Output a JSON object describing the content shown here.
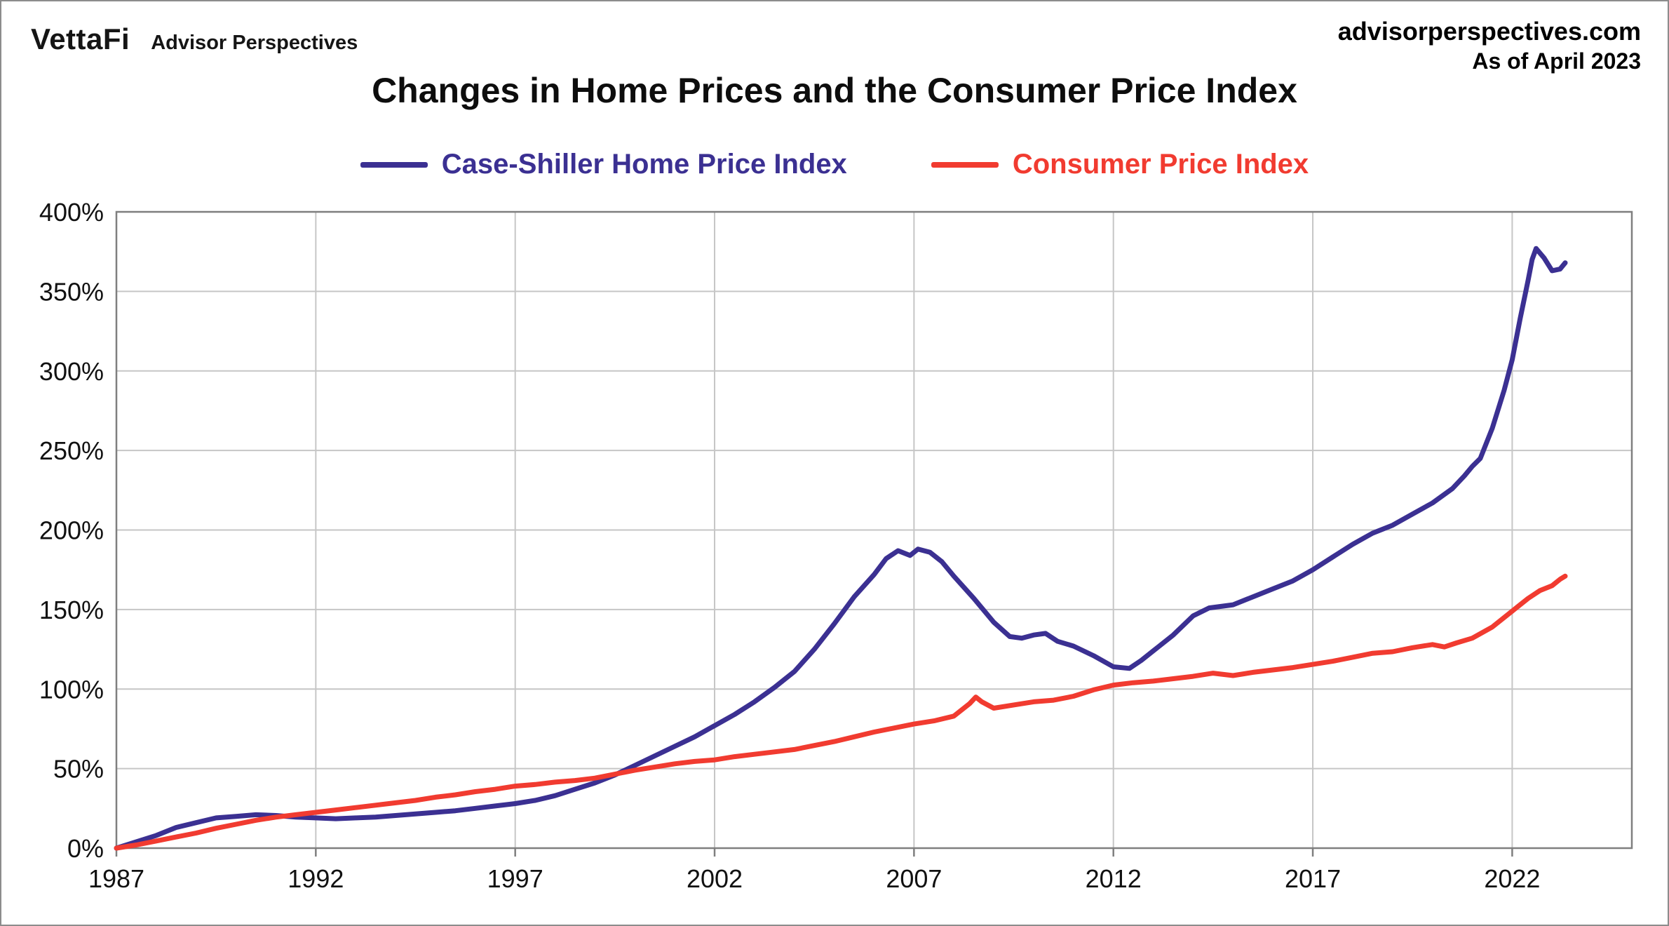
{
  "header": {
    "logo": "VettaFi",
    "logo_sub": "Advisor Perspectives",
    "site": "advisorperspectives.com",
    "as_of": "As of April 2023",
    "title": "Changes in Home Prices and the Consumer Price Index"
  },
  "legend": [
    {
      "label": "Case-Shiller Home Price Index",
      "color": "#3b3092"
    },
    {
      "label": "Consumer Price Index",
      "color": "#f13b30"
    }
  ],
  "chart_data": {
    "type": "line",
    "title": "Changes in Home Prices and the Consumer Price Index",
    "xlabel": "",
    "ylabel": "",
    "x_domain": [
      1987,
      2025
    ],
    "y_domain": [
      0,
      400
    ],
    "x_ticks": [
      1987,
      1992,
      1997,
      2002,
      2007,
      2012,
      2017,
      2022
    ],
    "y_ticks": [
      0,
      50,
      100,
      150,
      200,
      250,
      300,
      350,
      400
    ],
    "y_suffix": "%",
    "grid": true,
    "grid_color": "#c6c6c6",
    "axis_color": "#7f7f7f",
    "legend_position": "top-center",
    "series": [
      {
        "name": "Case-Shiller Home Price Index",
        "color": "#3b3092",
        "points": [
          [
            1987,
            0
          ],
          [
            1987.5,
            4
          ],
          [
            1988,
            8
          ],
          [
            1988.5,
            13
          ],
          [
            1989,
            16
          ],
          [
            1989.5,
            19
          ],
          [
            1990,
            20
          ],
          [
            1990.5,
            21
          ],
          [
            1991,
            20.5
          ],
          [
            1991.5,
            19.5
          ],
          [
            1992,
            19
          ],
          [
            1992.5,
            18.5
          ],
          [
            1993,
            19
          ],
          [
            1993.5,
            19.5
          ],
          [
            1994,
            20.5
          ],
          [
            1994.5,
            21.5
          ],
          [
            1995,
            22.5
          ],
          [
            1995.5,
            23.5
          ],
          [
            1996,
            25
          ],
          [
            1996.5,
            26.5
          ],
          [
            1997,
            28
          ],
          [
            1997.5,
            30
          ],
          [
            1998,
            33
          ],
          [
            1998.5,
            37
          ],
          [
            1999,
            41
          ],
          [
            1999.5,
            46
          ],
          [
            2000,
            52
          ],
          [
            2000.5,
            58
          ],
          [
            2001,
            64
          ],
          [
            2001.5,
            70
          ],
          [
            2002,
            77
          ],
          [
            2002.5,
            84
          ],
          [
            2003,
            92
          ],
          [
            2003.5,
            101
          ],
          [
            2004,
            111
          ],
          [
            2004.5,
            125
          ],
          [
            2005,
            141
          ],
          [
            2005.5,
            158
          ],
          [
            2006,
            172
          ],
          [
            2006.3,
            182
          ],
          [
            2006.6,
            187
          ],
          [
            2006.9,
            184
          ],
          [
            2007.1,
            188
          ],
          [
            2007.4,
            186
          ],
          [
            2007.7,
            180
          ],
          [
            2008,
            171
          ],
          [
            2008.5,
            157
          ],
          [
            2009,
            142
          ],
          [
            2009.4,
            133
          ],
          [
            2009.7,
            132
          ],
          [
            2010,
            134
          ],
          [
            2010.3,
            135
          ],
          [
            2010.6,
            130
          ],
          [
            2011,
            127
          ],
          [
            2011.5,
            121
          ],
          [
            2012,
            114
          ],
          [
            2012.4,
            113
          ],
          [
            2012.7,
            118
          ],
          [
            2013,
            124
          ],
          [
            2013.5,
            134
          ],
          [
            2014,
            146
          ],
          [
            2014.4,
            151
          ],
          [
            2015,
            153
          ],
          [
            2015.5,
            158
          ],
          [
            2016,
            163
          ],
          [
            2016.5,
            168
          ],
          [
            2017,
            175
          ],
          [
            2017.5,
            183
          ],
          [
            2018,
            191
          ],
          [
            2018.5,
            198
          ],
          [
            2019,
            203
          ],
          [
            2019.5,
            210
          ],
          [
            2020,
            217
          ],
          [
            2020.5,
            226
          ],
          [
            2020.8,
            234
          ],
          [
            2021,
            240
          ],
          [
            2021.2,
            245
          ],
          [
            2021.5,
            264
          ],
          [
            2021.8,
            288
          ],
          [
            2022,
            307
          ],
          [
            2022.2,
            333
          ],
          [
            2022.4,
            357
          ],
          [
            2022.5,
            370
          ],
          [
            2022.6,
            377
          ],
          [
            2022.8,
            371
          ],
          [
            2023,
            363
          ],
          [
            2023.2,
            364
          ],
          [
            2023.33,
            368
          ]
        ]
      },
      {
        "name": "Consumer Price Index",
        "color": "#f13b30",
        "points": [
          [
            1987,
            0
          ],
          [
            1987.5,
            2
          ],
          [
            1988,
            4.5
          ],
          [
            1988.5,
            7
          ],
          [
            1989,
            9.5
          ],
          [
            1989.5,
            12.5
          ],
          [
            1990,
            15
          ],
          [
            1990.5,
            17.5
          ],
          [
            1991,
            19.5
          ],
          [
            1991.5,
            21
          ],
          [
            1992,
            22.5
          ],
          [
            1992.5,
            24
          ],
          [
            1993,
            25.5
          ],
          [
            1993.5,
            27
          ],
          [
            1994,
            28.5
          ],
          [
            1994.5,
            30
          ],
          [
            1995,
            32
          ],
          [
            1995.5,
            33.5
          ],
          [
            1996,
            35.5
          ],
          [
            1996.5,
            37
          ],
          [
            1997,
            39
          ],
          [
            1997.5,
            40
          ],
          [
            1998,
            41.5
          ],
          [
            1998.5,
            42.5
          ],
          [
            1999,
            44
          ],
          [
            1999.5,
            46.5
          ],
          [
            2000,
            49
          ],
          [
            2000.5,
            51
          ],
          [
            2001,
            53
          ],
          [
            2001.5,
            54.5
          ],
          [
            2002,
            55.5
          ],
          [
            2002.5,
            57.5
          ],
          [
            2003,
            59
          ],
          [
            2003.5,
            60.5
          ],
          [
            2004,
            62
          ],
          [
            2004.5,
            64.5
          ],
          [
            2005,
            67
          ],
          [
            2005.5,
            70
          ],
          [
            2006,
            73
          ],
          [
            2006.5,
            75.5
          ],
          [
            2007,
            78
          ],
          [
            2007.5,
            80
          ],
          [
            2008,
            83
          ],
          [
            2008.4,
            91
          ],
          [
            2008.55,
            95
          ],
          [
            2008.7,
            92
          ],
          [
            2009,
            88
          ],
          [
            2009.5,
            90
          ],
          [
            2010,
            92
          ],
          [
            2010.5,
            93
          ],
          [
            2011,
            95.5
          ],
          [
            2011.5,
            99.5
          ],
          [
            2012,
            102.5
          ],
          [
            2012.5,
            104
          ],
          [
            2013,
            105
          ],
          [
            2013.5,
            106.5
          ],
          [
            2014,
            108
          ],
          [
            2014.5,
            110
          ],
          [
            2015,
            108.5
          ],
          [
            2015.5,
            110.5
          ],
          [
            2016,
            112
          ],
          [
            2016.5,
            113.5
          ],
          [
            2017,
            115.5
          ],
          [
            2017.5,
            117.5
          ],
          [
            2018,
            120
          ],
          [
            2018.5,
            122.5
          ],
          [
            2019,
            123.5
          ],
          [
            2019.5,
            126
          ],
          [
            2020,
            128
          ],
          [
            2020.3,
            126.5
          ],
          [
            2020.6,
            129
          ],
          [
            2021,
            132
          ],
          [
            2021.5,
            139
          ],
          [
            2022,
            149
          ],
          [
            2022.4,
            157
          ],
          [
            2022.7,
            162
          ],
          [
            2023,
            165
          ],
          [
            2023.2,
            169
          ],
          [
            2023.33,
            171
          ]
        ]
      }
    ]
  }
}
